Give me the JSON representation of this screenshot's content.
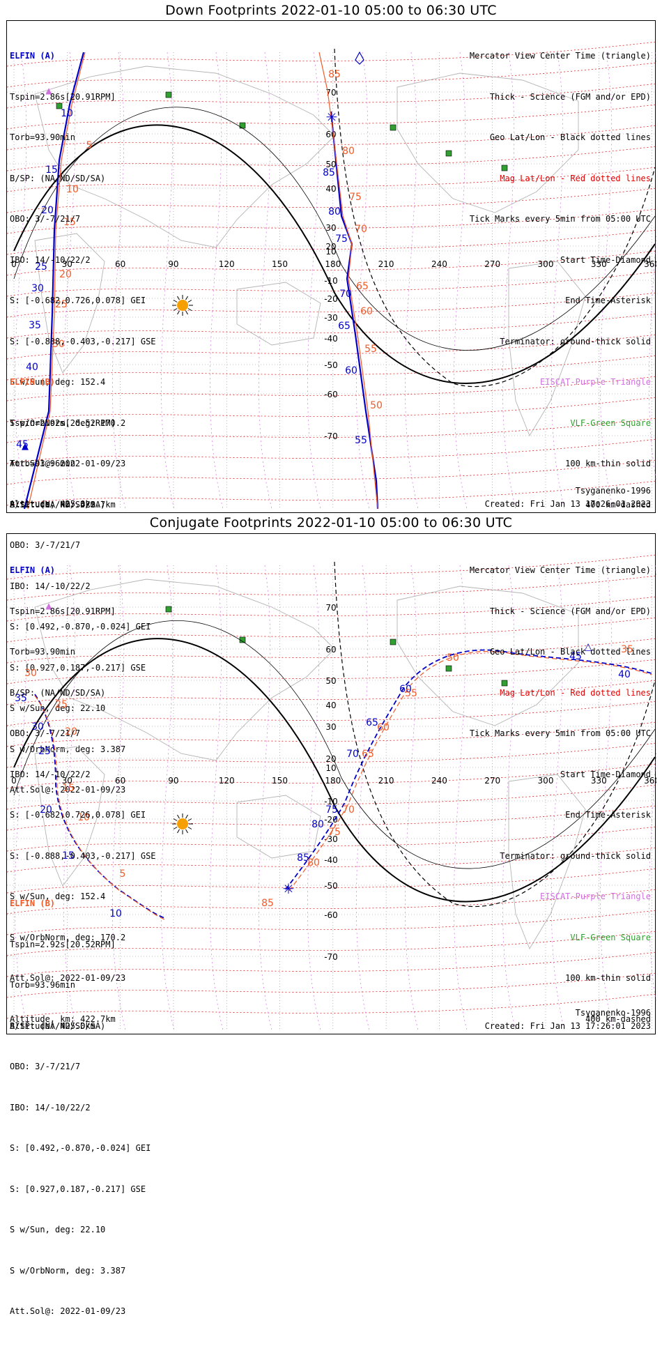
{
  "panels": [
    {
      "title": "Down Footprints 2022-01-10 05:00 to 06:30 UTC",
      "legend": [
        {
          "text": "Mercator View Center Time (triangle)",
          "color": "#000000"
        },
        {
          "text": "Thick - Science (FGM and/or EPD)",
          "color": "#000000"
        },
        {
          "text": "Geo Lat/Lon - Black dotted lines",
          "color": "#000000"
        },
        {
          "text": "Mag Lat/Lon - Red dotted lines",
          "color": "#e00000"
        },
        {
          "text": "Tick Marks every 5min from 05:00 UTC",
          "color": "#000000"
        },
        {
          "text": "Start Time-Diamond",
          "color": "#000000"
        },
        {
          "text": "End Time-Asterisk",
          "color": "#000000"
        },
        {
          "text": "Terminator: ground-thick solid",
          "color": "#000000"
        },
        {
          "text": "EISCAT-Purple Triangle",
          "color": "#d070e0"
        },
        {
          "text": "VLF-Green Square",
          "color": "#30a030"
        },
        {
          "text": "100 km-thin solid",
          "color": "#000000"
        },
        {
          "text": "400 km-dashed",
          "color": "#000000"
        }
      ],
      "elfin_a": {
        "name": "ELFIN (A)",
        "lines": [
          "Tspin=2.86s[20.91RPM]",
          "Torb=93.90min",
          "B/SP: (NA/ND/SD/SA)",
          "OBO: 3/-7/21/7",
          "IBO: 14/-10/22/2",
          "S: [-0.682,0.726,0.078] GEI",
          "S: [-0.888,-0.403,-0.217] GSE",
          "S w/Sun, deg: 152.4",
          "S w/OrbNorm, deg: 170.2",
          "Att.Sol@: 2022-01-09/23",
          "Altitude, km: 422.7km"
        ]
      },
      "elfin_b": {
        "name": "ELFIN (B)",
        "lines": [
          "Tspin=2.92s[20.52RPM]",
          "Torb=93.96min",
          "B/SP: (NA/ND/SD/SA)",
          "OBO: 3/-7/21/7",
          "IBO: 14/-10/22/2",
          "S: [0.492,-0.870,-0.024] GEI",
          "S: [0.927,0.187,-0.217] GSE",
          "S w/Sun, deg: 22.10",
          "S w/OrbNorm, deg: 3.387",
          "Att.Sol@: 2022-01-09/23",
          "Altitude: 425.0km"
        ]
      },
      "model": "Tsyganenko-1996",
      "created": "Created: Fri Jan 13 17:26:01 2023"
    },
    {
      "title": "Conjugate Footprints 2022-01-10 05:00 to 06:30 UTC",
      "legend": [
        {
          "text": "Mercator View Center Time (triangle)",
          "color": "#000000"
        },
        {
          "text": "Thick - Science (FGM and/or EPD)",
          "color": "#000000"
        },
        {
          "text": "Geo Lat/Lon - Black dotted lines",
          "color": "#000000"
        },
        {
          "text": "Mag Lat/Lon - Red dotted lines",
          "color": "#e00000"
        },
        {
          "text": "Tick Marks every 5min from 05:00 UTC",
          "color": "#000000"
        },
        {
          "text": "Start Time-Diamond",
          "color": "#000000"
        },
        {
          "text": "End Time-Asterisk",
          "color": "#000000"
        },
        {
          "text": "Terminator: ground-thick solid",
          "color": "#000000"
        },
        {
          "text": "EISCAT-Purple Triangle",
          "color": "#d070e0"
        },
        {
          "text": "VLF-Green Square",
          "color": "#30a030"
        },
        {
          "text": "100 km-thin solid",
          "color": "#000000"
        },
        {
          "text": "400 km-dashed",
          "color": "#000000"
        }
      ],
      "elfin_a": {
        "name": "ELFIN (A)",
        "lines": [
          "Tspin=2.86s[20.91RPM]",
          "Torb=93.90min",
          "B/SP: (NA/ND/SD/SA)",
          "OBO: 3/-7/21/7",
          "IBO: 14/-10/22/2",
          "S: [-0.682,0.726,0.078] GEI",
          "S: [-0.888,-0.403,-0.217] GSE",
          "S w/Sun, deg: 152.4",
          "S w/OrbNorm, deg: 170.2",
          "Att.Sol@: 2022-01-09/23",
          "Altitude, km: 422.7km"
        ]
      },
      "elfin_b": {
        "name": "ELFIN (B)",
        "lines": [
          "Tspin=2.92s[20.52RPM]",
          "Torb=93.96min",
          "B/SP: (NA/ND/SD/SA)",
          "OBO: 3/-7/21/7",
          "IBO: 14/-10/22/2",
          "S: [0.492,-0.870,-0.024] GEI",
          "S: [0.927,0.187,-0.217] GSE",
          "S w/Sun, deg: 22.10",
          "S w/OrbNorm, deg: 3.387",
          "Att.Sol@: 2022-01-09/23",
          "Altitude: 425.0km"
        ]
      },
      "model": "Tsyganenko-1996",
      "created": "Created: Fri Jan 13 17:26:01 2023"
    }
  ],
  "lon_ticks": [
    "0",
    "30",
    "60",
    "90",
    "120",
    "150",
    "180",
    "210",
    "240",
    "270",
    "300",
    "330",
    "360"
  ],
  "lat_ticks": [
    "70",
    "60",
    "50",
    "40",
    "30",
    "20",
    "10",
    "-10",
    "-20",
    "-30",
    "-40",
    "-50",
    "-60",
    "-70"
  ],
  "colors": {
    "elfin_a": "#0000c8",
    "elfin_b": "#f05a28",
    "mag_grid": "#e00000",
    "eiscat": "#d070e0",
    "vlf": "#30a030",
    "sun": "#f5a000"
  },
  "track_labels": {
    "down": {
      "a_left": [
        "10",
        "15",
        "20",
        "25",
        "30",
        "35",
        "40",
        "45"
      ],
      "b_left": [
        "5",
        "10",
        "15",
        "20",
        "25",
        "30"
      ],
      "a_right": [
        "85",
        "80",
        "75",
        "70",
        "65",
        "60",
        "55"
      ],
      "b_right": [
        "85",
        "80",
        "75",
        "70",
        "65",
        "60",
        "55",
        "50"
      ]
    },
    "conj": {
      "a_left": [
        "35",
        "30",
        "25",
        "20",
        "15",
        "10"
      ],
      "b_left": [
        "30",
        "25",
        "20",
        "15",
        "10",
        "5"
      ],
      "a_right": [
        "85",
        "80",
        "75",
        "70",
        "65",
        "60",
        "45",
        "40"
      ],
      "b_right": [
        "85",
        "80",
        "75",
        "70",
        "65",
        "60",
        "55",
        "50",
        "35"
      ]
    }
  }
}
